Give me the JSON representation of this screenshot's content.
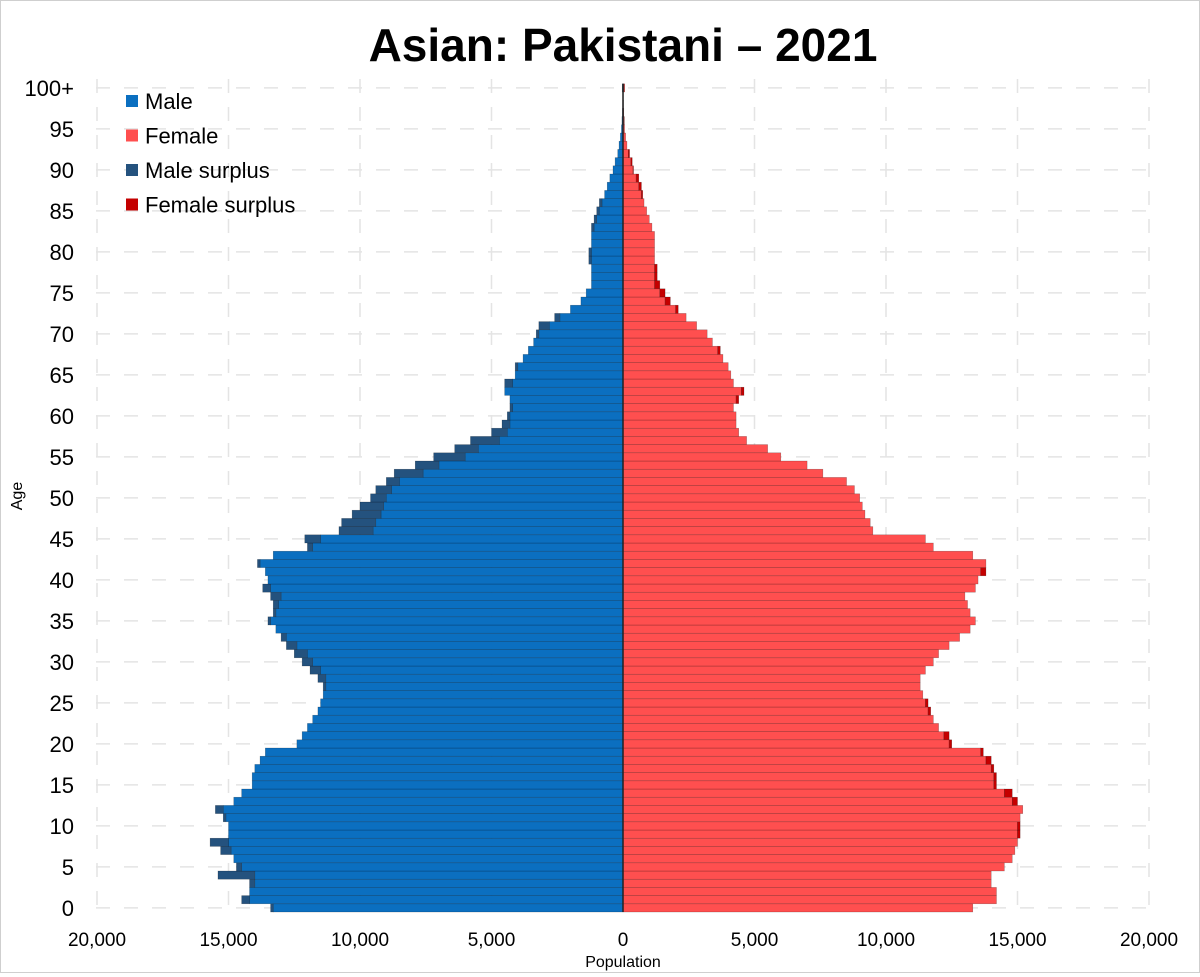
{
  "chart_data": {
    "type": "bar",
    "orientation": "horizontal",
    "title": "Asian: Pakistani – 2021",
    "xlabel": "Population",
    "ylabel": "Age",
    "xlim": [
      -20000,
      20000
    ],
    "x_ticks": [
      -20000,
      -15000,
      -10000,
      -5000,
      0,
      5000,
      10000,
      15000,
      20000
    ],
    "x_tick_labels": [
      "20,000",
      "15,000",
      "10,000",
      "5,000",
      "0",
      "5,000",
      "10,000",
      "15,000",
      "20,000"
    ],
    "y_ticks": [
      0,
      5,
      10,
      15,
      20,
      25,
      30,
      35,
      40,
      45,
      50,
      55,
      60,
      65,
      70,
      75,
      80,
      85,
      90,
      95,
      100
    ],
    "y_tick_labels": [
      "0",
      "5",
      "10",
      "15",
      "20",
      "25",
      "30",
      "35",
      "40",
      "45",
      "50",
      "55",
      "60",
      "65",
      "70",
      "75",
      "80",
      "85",
      "90",
      "95",
      "100+"
    ],
    "grid": true,
    "legend_position": "top-left",
    "legend": [
      {
        "label": "Male",
        "color": "#0b6fc0"
      },
      {
        "label": "Female",
        "color": "#ff4f4f"
      },
      {
        "label": "Male surplus",
        "color": "#24527e"
      },
      {
        "label": "Female surplus",
        "color": "#c40000"
      }
    ],
    "colors": {
      "male": "#0b6fc0",
      "female": "#ff4f4f",
      "male_surplus": "#24527e",
      "female_surplus": "#c40000"
    },
    "ages": [
      0,
      1,
      2,
      3,
      4,
      5,
      6,
      7,
      8,
      9,
      10,
      11,
      12,
      13,
      14,
      15,
      16,
      17,
      18,
      19,
      20,
      21,
      22,
      23,
      24,
      25,
      26,
      27,
      28,
      29,
      30,
      31,
      32,
      33,
      34,
      35,
      36,
      37,
      38,
      39,
      40,
      41,
      42,
      43,
      44,
      45,
      46,
      47,
      48,
      49,
      50,
      51,
      52,
      53,
      54,
      55,
      56,
      57,
      58,
      59,
      60,
      61,
      62,
      63,
      64,
      65,
      66,
      67,
      68,
      69,
      70,
      71,
      72,
      73,
      74,
      75,
      76,
      77,
      78,
      79,
      80,
      81,
      82,
      83,
      84,
      85,
      86,
      87,
      88,
      89,
      90,
      91,
      92,
      93,
      94,
      95,
      96,
      97,
      98,
      99,
      100
    ],
    "series": [
      {
        "name": "Male",
        "values": [
          13400,
          14500,
          14200,
          14200,
          15400,
          14700,
          14800,
          15300,
          15700,
          15000,
          15000,
          15200,
          15500,
          14800,
          14500,
          14100,
          14100,
          14000,
          13800,
          13600,
          12400,
          12200,
          12000,
          11800,
          11600,
          11500,
          11400,
          11400,
          11600,
          11900,
          12200,
          12500,
          12800,
          13000,
          13200,
          13500,
          13300,
          13300,
          13400,
          13700,
          13500,
          13600,
          13900,
          13300,
          12000,
          12100,
          10800,
          10700,
          10300,
          10000,
          9600,
          9400,
          9000,
          8700,
          7900,
          7200,
          6400,
          5800,
          5000,
          4600,
          4400,
          4300,
          4300,
          4500,
          4500,
          4100,
          4100,
          3800,
          3600,
          3400,
          3300,
          3200,
          2600,
          2000,
          1600,
          1400,
          1200,
          1200,
          1200,
          1300,
          1300,
          1200,
          1200,
          1200,
          1100,
          1000,
          900,
          700,
          600,
          500,
          380,
          300,
          200,
          150,
          100,
          60,
          40,
          25,
          15,
          10,
          30
        ]
      },
      {
        "name": "Female",
        "values": [
          13300,
          14200,
          14200,
          14000,
          14000,
          14500,
          14800,
          14900,
          15000,
          15100,
          15100,
          15100,
          15200,
          15000,
          14800,
          14200,
          14200,
          14100,
          14000,
          13700,
          12500,
          12400,
          12000,
          11800,
          11700,
          11600,
          11400,
          11300,
          11300,
          11500,
          11800,
          12000,
          12400,
          12800,
          13200,
          13400,
          13200,
          13100,
          13000,
          13400,
          13500,
          13800,
          13800,
          13300,
          11800,
          11500,
          9500,
          9400,
          9200,
          9100,
          9000,
          8800,
          8500,
          7600,
          7000,
          6000,
          5500,
          4700,
          4400,
          4300,
          4300,
          4200,
          4400,
          4600,
          4200,
          4100,
          4000,
          3800,
          3700,
          3400,
          3200,
          2800,
          2400,
          2100,
          1800,
          1600,
          1400,
          1300,
          1300,
          1200,
          1200,
          1200,
          1200,
          1100,
          1000,
          900,
          800,
          750,
          700,
          600,
          400,
          350,
          250,
          150,
          100,
          60,
          50,
          30,
          20,
          15,
          60
        ]
      }
    ]
  }
}
